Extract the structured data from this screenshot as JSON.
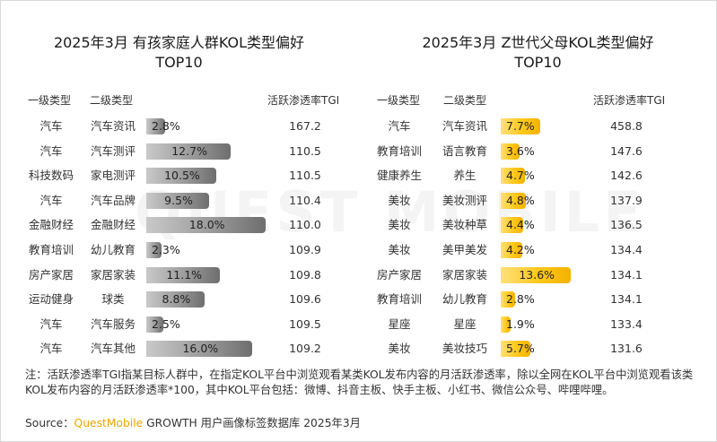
{
  "watermark": "QUEST MOBILE",
  "chart_data": [
    {
      "type": "bar",
      "title": "2025年3月 有孩家庭人群KOL类型偏好",
      "subtitle": "TOP10",
      "headers": {
        "cat1": "一级类型",
        "cat2": "二级类型",
        "metric": "活跃渗透率TGI"
      },
      "color": "#9a9a9a",
      "xlim": [
        0,
        20
      ],
      "rows": [
        {
          "cat1": "汽车",
          "cat2": "汽车资讯",
          "value": 2.8,
          "label": "2.8%",
          "tgi": "167.2"
        },
        {
          "cat1": "汽车",
          "cat2": "汽车测评",
          "value": 12.7,
          "label": "12.7%",
          "tgi": "110.5"
        },
        {
          "cat1": "科技数码",
          "cat2": "家电测评",
          "value": 10.5,
          "label": "10.5%",
          "tgi": "110.5"
        },
        {
          "cat1": "汽车",
          "cat2": "汽车品牌",
          "value": 9.5,
          "label": "9.5%",
          "tgi": "110.4"
        },
        {
          "cat1": "金融财经",
          "cat2": "金融财经",
          "value": 18.0,
          "label": "18.0%",
          "tgi": "110.0"
        },
        {
          "cat1": "教育培训",
          "cat2": "幼儿教育",
          "value": 2.3,
          "label": "2.3%",
          "tgi": "109.9"
        },
        {
          "cat1": "房产家居",
          "cat2": "家居家装",
          "value": 11.1,
          "label": "11.1%",
          "tgi": "109.8"
        },
        {
          "cat1": "运动健身",
          "cat2": "球类",
          "value": 8.8,
          "label": "8.8%",
          "tgi": "109.6"
        },
        {
          "cat1": "汽车",
          "cat2": "汽车服务",
          "value": 2.5,
          "label": "2.5%",
          "tgi": "109.5"
        },
        {
          "cat1": "汽车",
          "cat2": "汽车其他",
          "value": 16.0,
          "label": "16.0%",
          "tgi": "109.2"
        }
      ]
    },
    {
      "type": "bar",
      "title": "2025年3月 Z世代父母KOL类型偏好",
      "subtitle": "TOP10",
      "headers": {
        "cat1": "一级类型",
        "cat2": "二级类型",
        "metric": "活跃渗透率TGI"
      },
      "color": "#ffc81a",
      "xlim": [
        0,
        20
      ],
      "rows": [
        {
          "cat1": "汽车",
          "cat2": "汽车资讯",
          "value": 7.7,
          "label": "7.7%",
          "tgi": "458.8"
        },
        {
          "cat1": "教育培训",
          "cat2": "语言教育",
          "value": 3.6,
          "label": "3.6%",
          "tgi": "147.6"
        },
        {
          "cat1": "健康养生",
          "cat2": "养生",
          "value": 4.7,
          "label": "4.7%",
          "tgi": "142.6"
        },
        {
          "cat1": "美妆",
          "cat2": "美妆测评",
          "value": 4.8,
          "label": "4.8%",
          "tgi": "137.9"
        },
        {
          "cat1": "美妆",
          "cat2": "美妆种草",
          "value": 4.4,
          "label": "4.4%",
          "tgi": "136.5"
        },
        {
          "cat1": "美妆",
          "cat2": "美甲美发",
          "value": 4.2,
          "label": "4.2%",
          "tgi": "134.4"
        },
        {
          "cat1": "房产家居",
          "cat2": "家居家装",
          "value": 13.6,
          "label": "13.6%",
          "tgi": "134.1"
        },
        {
          "cat1": "教育培训",
          "cat2": "幼儿教育",
          "value": 2.8,
          "label": "2.8%",
          "tgi": "134.1"
        },
        {
          "cat1": "星座",
          "cat2": "星座",
          "value": 1.9,
          "label": "1.9%",
          "tgi": "133.4"
        },
        {
          "cat1": "美妆",
          "cat2": "美妆技巧",
          "value": 5.7,
          "label": "5.7%",
          "tgi": "131.6"
        }
      ]
    }
  ],
  "footer": {
    "note": "注：活跃渗透率TGI指某目标人群中，在指定KOL平台中浏览观看某类KOL发布内容的月活跃渗透率，除以全网在KOL平台中浏览观看该类KOL发布内容的月活跃渗透率*100，其中KOL平台包括：微博、抖音主板、快手主板、小红书、微信公众号、哔哩哔哩。",
    "source_prefix": "Source：",
    "source_brand": "QuestMobile",
    "source_suffix": " GROWTH 用户画像标签数据库 2025年3月"
  }
}
